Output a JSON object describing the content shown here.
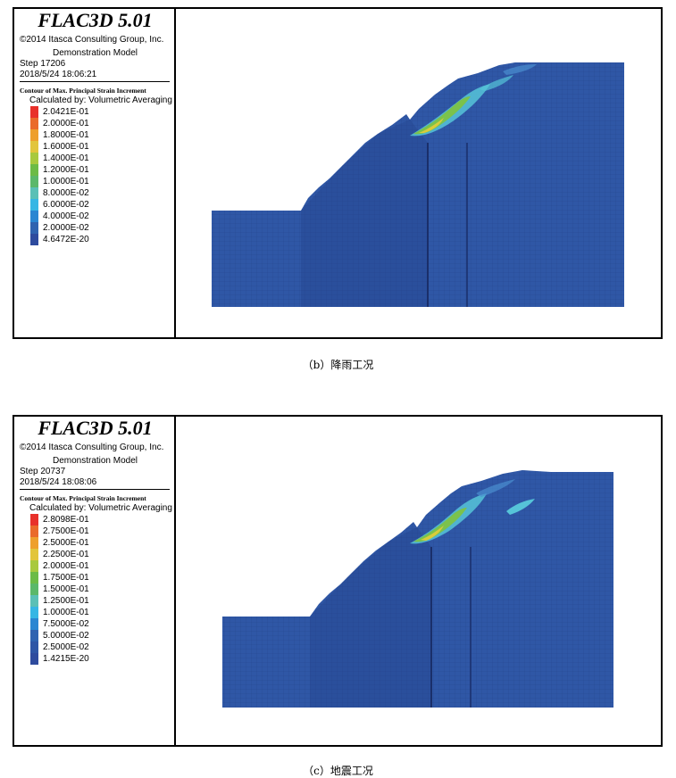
{
  "figures": [
    {
      "software_title": "FLAC3D 5.01",
      "copyright": "©2014 Itasca Consulting Group, Inc.",
      "model_name": "Demonstration Model",
      "step": "Step 17206",
      "timestamp": "2018/5/24 18:06:21",
      "contour_title": "Contour of Max. Principal Strain Increment",
      "calculated_by": "Calculated by: Volumetric Averaging",
      "scale": [
        {
          "label": "2.0421E-01",
          "color": "#e8302a"
        },
        {
          "label": "2.0000E-01",
          "color": "#ea6a2a"
        },
        {
          "label": "1.8000E-01",
          "color": "#ee9f2c"
        },
        {
          "label": "1.6000E-01",
          "color": "#e2c53c"
        },
        {
          "label": "1.4000E-01",
          "color": "#a8c93e"
        },
        {
          "label": "1.2000E-01",
          "color": "#6cbb46"
        },
        {
          "label": "1.0000E-01",
          "color": "#5bb86a"
        },
        {
          "label": "8.0000E-02",
          "color": "#5ac0b6"
        },
        {
          "label": "6.0000E-02",
          "color": "#36b6e4"
        },
        {
          "label": "4.0000E-02",
          "color": "#2a86d2"
        },
        {
          "label": "2.0000E-02",
          "color": "#2f63b0"
        },
        {
          "label": "4.6472E-20",
          "color": "#2e4b9e"
        }
      ],
      "caption": "（b）降雨工况"
    },
    {
      "software_title": "FLAC3D 5.01",
      "copyright": "©2014 Itasca Consulting Group, Inc.",
      "model_name": "Demonstration Model",
      "step": "Step 20737",
      "timestamp": "2018/5/24 18:08:06",
      "contour_title": "Contour of Max. Principal Strain Increment",
      "calculated_by": "Calculated by: Volumetric Averaging",
      "scale": [
        {
          "label": "2.8098E-01",
          "color": "#e8302a"
        },
        {
          "label": "2.7500E-01",
          "color": "#ea6a2a"
        },
        {
          "label": "2.5000E-01",
          "color": "#ee9f2c"
        },
        {
          "label": "2.2500E-01",
          "color": "#e2c53c"
        },
        {
          "label": "2.0000E-01",
          "color": "#a8c93e"
        },
        {
          "label": "1.7500E-01",
          "color": "#6cbb46"
        },
        {
          "label": "1.5000E-01",
          "color": "#5bb86a"
        },
        {
          "label": "1.2500E-01",
          "color": "#5ac0b6"
        },
        {
          "label": "1.0000E-01",
          "color": "#36b6e4"
        },
        {
          "label": "7.5000E-02",
          "color": "#2a86d2"
        },
        {
          "label": "5.0000E-02",
          "color": "#2f63b0"
        },
        {
          "label": "2.5000E-02",
          "color": "#2e56a6"
        },
        {
          "label": "1.4215E-20",
          "color": "#2e4b9e"
        }
      ],
      "caption": "（c）地震工况"
    }
  ],
  "colors": {
    "slope_base": "#2f57a6",
    "slope_dark": "#23418a",
    "mesh_line": "#1f3a7e",
    "band_green": "#7bc24c",
    "band_cyan": "#56c4d8",
    "band_yellow": "#d8cc3c"
  }
}
